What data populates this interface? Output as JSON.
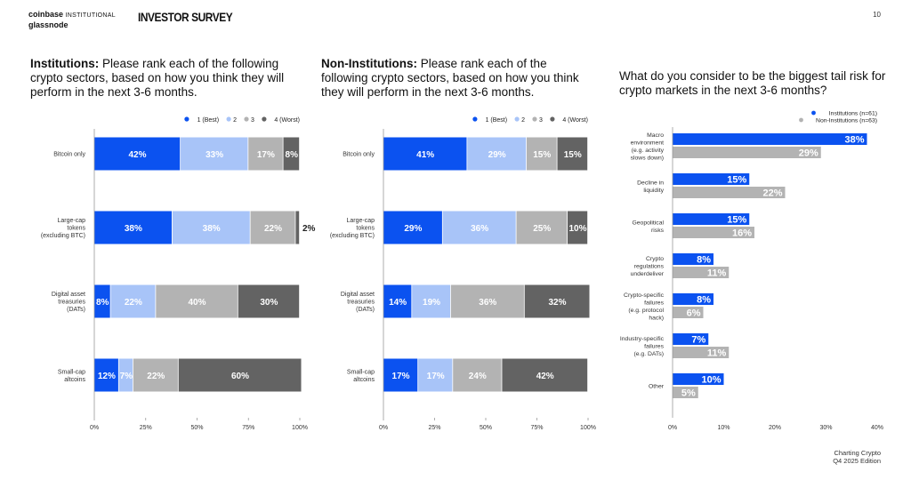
{
  "header": {
    "logo_line1": "coinbase",
    "logo_line1_suffix": "INSTITUTIONAL",
    "logo_line2": "glassnode",
    "survey": "INVESTOR SURVEY",
    "page_number": "10"
  },
  "footer": {
    "line1": "Charting Crypto",
    "line2": "Q4 2025 Edition"
  },
  "colors": {
    "rank1": "#0b52f0",
    "rank2": "#a8c4f8",
    "rank3": "#b3b3b3",
    "rank4": "#636363",
    "institutions": "#0b52f0",
    "non_institutions": "#b3b3b3"
  },
  "panels": [
    {
      "title_bold": "Institutions:",
      "title_rest": " Please rank each of the following crypto sectors, based on how you think they will perform in the next 3-6 months."
    },
    {
      "title_bold": "Non-Institutions:",
      "title_rest": " Please rank each of the following crypto sectors, based on how you think they will perform in the next 3-6 months."
    },
    {
      "title_bold": "",
      "title_rest": "What do you consider to be the biggest tail risk for crypto markets in the next 3-6 months?"
    }
  ],
  "chart_data": [
    {
      "type": "bar",
      "orientation": "horizontal",
      "stacked": true,
      "categories": [
        "Bitcoin only",
        "Large-cap tokens (excluding BTC)",
        "Digital asset treasuries (DATs)",
        "Small-cap altcoins"
      ],
      "category_lines": [
        [
          "Bitcoin only"
        ],
        [
          "Large-cap",
          "tokens",
          "(excluding BTC)"
        ],
        [
          "Digital asset",
          "treasuries",
          "(DATs)"
        ],
        [
          "Small-cap",
          "altcoins"
        ]
      ],
      "series": [
        {
          "name": "1 (Best)",
          "color": "#0b52f0",
          "values": [
            42,
            38,
            8,
            12
          ]
        },
        {
          "name": "2",
          "color": "#a8c4f8",
          "values": [
            33,
            38,
            22,
            7
          ]
        },
        {
          "name": "3",
          "color": "#b3b3b3",
          "values": [
            17,
            22,
            40,
            22
          ]
        },
        {
          "name": "4 (Worst)",
          "color": "#636363",
          "values": [
            8,
            2,
            30,
            60
          ]
        }
      ],
      "xlim": [
        0,
        100
      ],
      "xticks": [
        "0%",
        "25%",
        "50%",
        "75%",
        "100%"
      ],
      "legend_position": "top-right",
      "grid": false
    },
    {
      "type": "bar",
      "orientation": "horizontal",
      "stacked": true,
      "categories": [
        "Bitcoin only",
        "Large-cap tokens (excluding BTC)",
        "Digital asset treasuries (DATs)",
        "Small-cap altcoins"
      ],
      "category_lines": [
        [
          "Bitcoin only"
        ],
        [
          "Large-cap",
          "tokens",
          "(excluding BTC)"
        ],
        [
          "Digital asset",
          "treasuries",
          "(DATs)"
        ],
        [
          "Small-cap",
          "altcoins"
        ]
      ],
      "series": [
        {
          "name": "1 (Best)",
          "color": "#0b52f0",
          "values": [
            41,
            29,
            14,
            17
          ]
        },
        {
          "name": "2",
          "color": "#a8c4f8",
          "values": [
            29,
            36,
            19,
            17
          ]
        },
        {
          "name": "3",
          "color": "#b3b3b3",
          "values": [
            15,
            25,
            36,
            24
          ]
        },
        {
          "name": "4 (Worst)",
          "color": "#636363",
          "values": [
            15,
            10,
            32,
            42
          ]
        }
      ],
      "xlim": [
        0,
        100
      ],
      "xticks": [
        "0%",
        "25%",
        "50%",
        "75%",
        "100%"
      ],
      "legend_position": "top-right",
      "grid": false
    },
    {
      "type": "bar",
      "orientation": "horizontal",
      "stacked": false,
      "categories": [
        "Macro environment (e.g. activity slows down)",
        "Decline in liquidity",
        "Geopolitical risks",
        "Crypto regulations underdeliver",
        "Crypto-specific failures (e.g. protocol hack)",
        "Industry-specific failures (e.g. DATs)",
        "Other"
      ],
      "category_lines": [
        [
          "Macro",
          "environment",
          "(e.g. activity",
          "slows down)"
        ],
        [
          "Decline in",
          "liquidity"
        ],
        [
          "Geopolitical",
          "risks"
        ],
        [
          "Crypto",
          "regulations",
          "underdeliver"
        ],
        [
          "Crypto-specific",
          "failures",
          "(e.g. protocol",
          "hack)"
        ],
        [
          "Industry-specific",
          "failures",
          "(e.g. DATs)"
        ],
        [
          "Other"
        ]
      ],
      "series": [
        {
          "name": "Institutions (n=61)",
          "color": "#0b52f0",
          "values": [
            38,
            15,
            15,
            8,
            8,
            7,
            10
          ]
        },
        {
          "name": "Non-Institutions (n=63)",
          "color": "#b3b3b3",
          "values": [
            29,
            22,
            16,
            11,
            6,
            11,
            5
          ]
        }
      ],
      "xlim": [
        0,
        40
      ],
      "xticks": [
        "0%",
        "10%",
        "20%",
        "30%",
        "40%"
      ],
      "legend_position": "top-right",
      "grid": false
    }
  ]
}
